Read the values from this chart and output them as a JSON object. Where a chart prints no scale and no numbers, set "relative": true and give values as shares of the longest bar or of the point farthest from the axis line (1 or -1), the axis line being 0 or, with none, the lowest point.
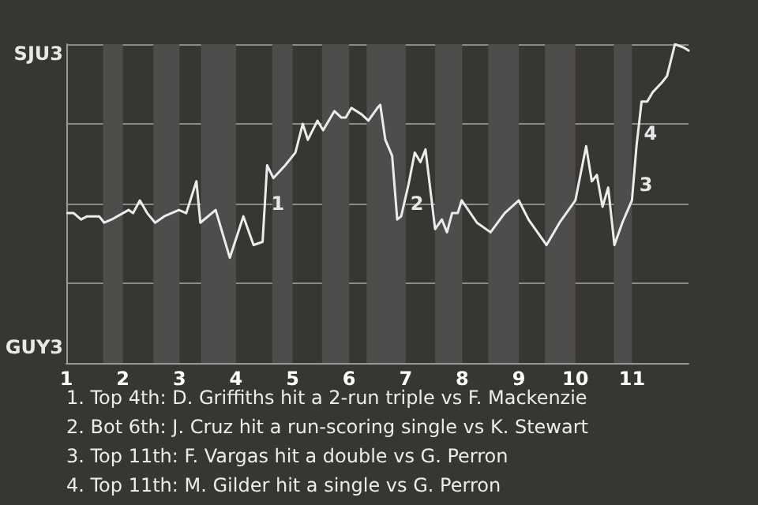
{
  "chart_data": {
    "type": "line",
    "x": [
      1.02,
      1.13,
      1.26,
      1.37,
      1.58,
      1.67,
      1.8,
      2.1,
      2.18,
      2.3,
      2.43,
      2.57,
      2.73,
      2.99,
      3.12,
      3.3,
      3.37,
      3.64,
      3.89,
      4.13,
      4.31,
      4.47,
      4.55,
      4.66,
      4.87,
      5.05,
      5.18,
      5.27,
      5.44,
      5.54,
      5.74,
      5.86,
      5.94,
      6.04,
      6.22,
      6.34,
      6.5,
      6.55,
      6.64,
      6.76,
      6.85,
      6.92,
      7.05,
      7.16,
      7.26,
      7.35,
      7.52,
      7.64,
      7.73,
      7.82,
      7.92,
      7.99,
      8.26,
      8.5,
      8.75,
      9.0,
      9.17,
      9.49,
      9.72,
      10.0,
      10.19,
      10.29,
      10.38,
      10.48,
      10.58,
      10.69,
      10.83,
      11.0,
      11.08,
      11.17,
      11.27,
      11.37,
      11.53,
      11.62,
      11.76,
      11.91,
      12.0
    ],
    "series": [
      {
        "color": "#ececec",
        "values": [
          0.47,
          0.47,
          0.45,
          0.46,
          0.46,
          0.44,
          0.45,
          0.48,
          0.47,
          0.51,
          0.47,
          0.44,
          0.46,
          0.48,
          0.47,
          0.57,
          0.44,
          0.48,
          0.33,
          0.46,
          0.37,
          0.38,
          0.62,
          0.58,
          0.62,
          0.66,
          0.75,
          0.7,
          0.76,
          0.73,
          0.79,
          0.77,
          0.77,
          0.8,
          0.78,
          0.76,
          0.8,
          0.81,
          0.7,
          0.65,
          0.45,
          0.46,
          0.56,
          0.66,
          0.63,
          0.67,
          0.42,
          0.45,
          0.41,
          0.47,
          0.47,
          0.51,
          0.44,
          0.41,
          0.47,
          0.51,
          0.45,
          0.37,
          0.44,
          0.51,
          0.68,
          0.57,
          0.59,
          0.49,
          0.55,
          0.37,
          0.44,
          0.51,
          0.68,
          0.82,
          0.82,
          0.85,
          0.88,
          0.9,
          1,
          0.99,
          0.98
        ]
      }
    ],
    "relative": true,
    "xlim": [
      1,
      12
    ],
    "xticks": [
      1,
      2,
      3,
      4,
      5,
      6,
      7,
      8,
      9,
      10,
      11
    ],
    "grid": "y",
    "bands": [
      {
        "axis": "x",
        "from": 1.65,
        "to": 2,
        "color": "#4f4d4b"
      },
      {
        "axis": "x",
        "from": 2.54,
        "to": 3,
        "color": "#4f4d4b"
      },
      {
        "axis": "x",
        "from": 3.38,
        "to": 4,
        "color": "#4f4d4b"
      },
      {
        "axis": "x",
        "from": 4.64,
        "to": 5,
        "color": "#4f4d4b"
      },
      {
        "axis": "x",
        "from": 5.52,
        "to": 6,
        "color": "#4f4d4b"
      },
      {
        "axis": "x",
        "from": 6.31,
        "to": 7,
        "color": "#4f4d4b"
      },
      {
        "axis": "x",
        "from": 7.52,
        "to": 8,
        "color": "#4f4d4b"
      },
      {
        "axis": "x",
        "from": 8.46,
        "to": 9,
        "color": "#4f4d4b"
      },
      {
        "axis": "x",
        "from": 9.46,
        "to": 10,
        "color": "#4f4d4b"
      },
      {
        "axis": "x",
        "from": 10.68,
        "to": 11,
        "color": "#4f4d4b"
      }
    ],
    "annotations": [
      {
        "text": "1",
        "x": 4.51,
        "y": 0.5
      },
      {
        "text": "2",
        "x": 6.97,
        "y": 0.5
      },
      {
        "text": "3",
        "x": 11.02,
        "y": 0.56
      },
      {
        "text": "4",
        "x": 11.1,
        "y": 0.72
      },
      "SJU3",
      "GUY3",
      "1. Top 4th: D. Griffiths hit a 2-run triple vs F. Mackenzie",
      "2. Bot 6th: J. Cruz hit a run-scoring single vs K. Stewart",
      "3. Top 11th: F. Vargas hit a double vs G. Perron",
      "4. Top 11th: M. Gilder hit a single vs G. Perron"
    ]
  }
}
